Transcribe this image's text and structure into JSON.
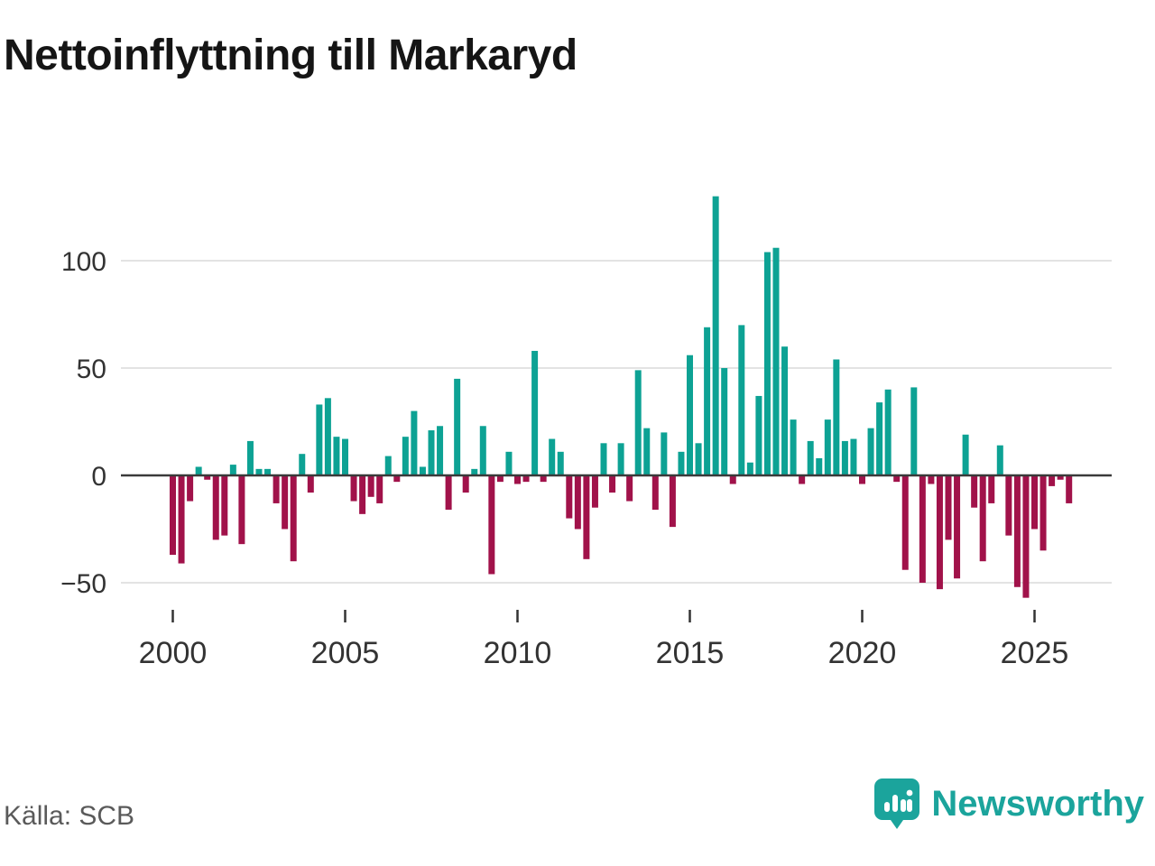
{
  "title": "Nettoinflyttning till Markaryd",
  "source": "Källa: SCB",
  "logo": {
    "text": "Newsworthy"
  },
  "chart_data": {
    "type": "bar",
    "title": "Nettoinflyttning till Markaryd",
    "frequency": "quarterly",
    "x_start": {
      "year": 2000,
      "quarter": 1
    },
    "x_end": {
      "year": 2026,
      "quarter": 1
    },
    "xticks": [
      2000,
      2005,
      2010,
      2015,
      2020,
      2025
    ],
    "yticks": [
      -50,
      0,
      50,
      100
    ],
    "ylim": [
      -65,
      140
    ],
    "grid": true,
    "legend": "none",
    "colors": {
      "positive": "#0da294",
      "negative": "#a1124a"
    },
    "values": [
      -37,
      -41,
      -12,
      4,
      -2,
      -30,
      -28,
      5,
      -32,
      16,
      3,
      3,
      -13,
      -25,
      -40,
      10,
      -8,
      33,
      36,
      18,
      17,
      -12,
      -18,
      -10,
      -13,
      9,
      -3,
      18,
      30,
      4,
      21,
      23,
      -16,
      45,
      -8,
      3,
      23,
      -46,
      -3,
      11,
      -4,
      -3,
      58,
      -3,
      17,
      11,
      -20,
      -25,
      -39,
      -15,
      15,
      -8,
      15,
      -12,
      49,
      22,
      -16,
      20,
      -24,
      11,
      56,
      15,
      69,
      130,
      50,
      -4,
      70,
      6,
      37,
      104,
      106,
      60,
      26,
      -4,
      16,
      8,
      26,
      54,
      16,
      17,
      -4,
      22,
      34,
      40,
      -3,
      -44,
      41,
      -50,
      -4,
      -53,
      -30,
      -48,
      19,
      -15,
      -40,
      -13,
      14,
      -28,
      -52,
      -57,
      -25,
      -35,
      -5,
      -2,
      -13
    ]
  }
}
